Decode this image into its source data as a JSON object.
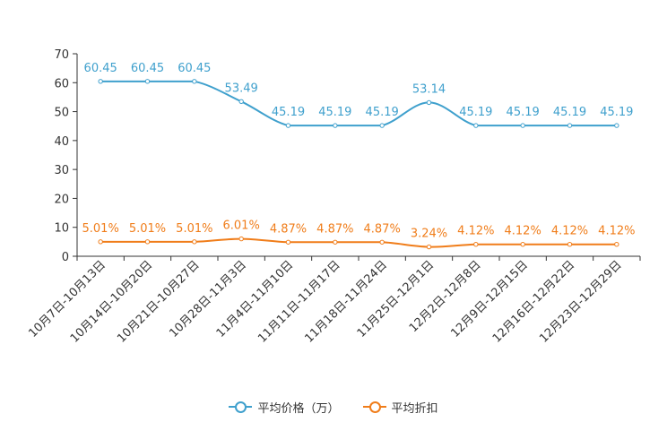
{
  "chart_data": {
    "type": "line",
    "title": "",
    "xlabel": "",
    "ylabel": "",
    "ylim": [
      0,
      70
    ],
    "yticks": [
      0,
      10,
      20,
      30,
      40,
      50,
      60,
      70
    ],
    "categories": [
      "10月7日-10月13日",
      "10月14日-10月20日",
      "10月21日-10月27日",
      "10月28日-11月3日",
      "11月4日-11月10日",
      "11月11日-11月17日",
      "11月18日-11月24日",
      "11月25日-12月1日",
      "12月2日-12月8日",
      "12月9日-12月15日",
      "12月16日-12月22日",
      "12月23日-12月29日"
    ],
    "series": [
      {
        "name": "平均价格（万）",
        "color": "#3fa0cd",
        "values": [
          60.45,
          60.45,
          60.45,
          53.49,
          45.19,
          45.19,
          45.19,
          53.14,
          45.19,
          45.19,
          45.19,
          45.19
        ],
        "labels": [
          "60.45",
          "60.45",
          "60.45",
          "53.49",
          "45.19",
          "45.19",
          "45.19",
          "53.14",
          "45.19",
          "45.19",
          "45.19",
          "45.19"
        ]
      },
      {
        "name": "平均折扣",
        "color": "#f07d1a",
        "values": [
          5.01,
          5.01,
          5.01,
          6.01,
          4.87,
          4.87,
          4.87,
          3.24,
          4.12,
          4.12,
          4.12,
          4.12
        ],
        "labels": [
          "5.01%",
          "5.01%",
          "5.01%",
          "6.01%",
          "4.87%",
          "4.87%",
          "4.87%",
          "3.24%",
          "4.12%",
          "4.12%",
          "4.12%",
          "4.12%"
        ]
      }
    ],
    "legend_position": "bottom-center",
    "grid": false
  },
  "legend": {
    "items": [
      {
        "label": "平均价格（万）",
        "color": "#3fa0cd",
        "icon": "circle-line-icon"
      },
      {
        "label": "平均折扣",
        "color": "#f07d1a",
        "icon": "circle-line-icon"
      }
    ]
  }
}
